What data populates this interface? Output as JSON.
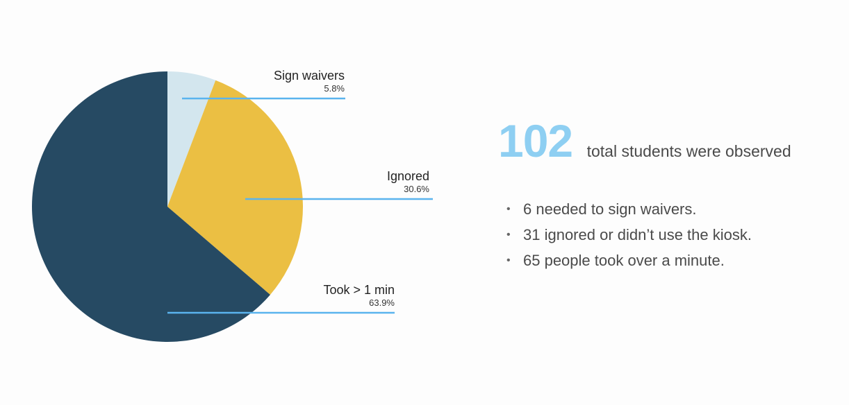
{
  "chart_data": {
    "type": "pie",
    "slices": [
      {
        "label": "Sign waivers",
        "value": 5.8,
        "value_label": "5.8%",
        "color": "#d3e6ee"
      },
      {
        "label": "Ignored",
        "value": 30.6,
        "value_label": "30.6%",
        "color": "#ebbf43"
      },
      {
        "label": "Took > 1 min",
        "value": 63.9,
        "value_label": "63.9%",
        "color": "#264a63"
      }
    ],
    "start": "12 o'clock",
    "direction": "clockwise",
    "leader_line_color": "#5ab4ee"
  },
  "summary": {
    "total_number": "102",
    "total_text": "total students were observed",
    "bullet_symbol": "•",
    "bullets": [
      "6 needed to sign waivers.",
      "31 ignored or didn’t use the kiosk.",
      "65 people took over a minute."
    ]
  },
  "colors": {
    "accent": "#8ecff2",
    "text": "#4a4a4a"
  }
}
